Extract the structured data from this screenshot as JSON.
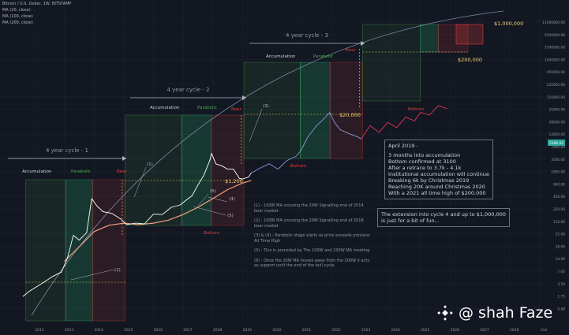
{
  "header": {
    "symbol": "Bitcoin / U.S. Dollar, 1W, BITSTAMP",
    "ma1": "MA (20, close)",
    "ma2": "MA (100, close)",
    "ma3": "MA (200, close)"
  },
  "colors": {
    "background": "#131722",
    "price": "#ffffff",
    "projection": "#e0355a",
    "ma200": "#f0a080",
    "cycle_line": "#7e8ba6",
    "label_yellow": "#f5d36b",
    "accumulation_green": "#4caf50",
    "parabolic_green": "#26d07c",
    "bear_red": "#e03a3a",
    "axis_text": "#9598a1"
  },
  "annotations": {
    "cycle1": "4 year cycle - 1",
    "cycle2": "4 year cycle - 2",
    "cycle3": "4 year cycle - 3",
    "accumulation": "Accumulation",
    "parabolic": "Parabolic",
    "bear": "Bear",
    "bottom": "Bottom",
    "p1200": "$1,200",
    "p20000": "$20,000",
    "p200000": "$200,000",
    "p1000000": "$1,000,000",
    "m1": "(1)",
    "m2": "(2)",
    "m3": "(3)",
    "m4": "(4)",
    "m5": "(5)",
    "m6": "(6)"
  },
  "note_april": {
    "title": "April 2019 -",
    "lines": [
      "3 months into accumulation",
      "Bottom confirmed at 3100",
      "After a retrace to 3.7k - 4.1k",
      "Institutional accumulation will continue",
      "Breaking 6k by Christmas 2019",
      "Reaching 20K around Christmas 2020",
      "With a 2021 all time high of $200,000"
    ]
  },
  "note_extension": {
    "lines": [
      "The extension into cycle 4 and up to $1,000,000",
      "is just for a bit of fun..."
    ]
  },
  "legend_notes": [
    "(1) - 100W MA crossing the 20W Signalling end of 2014 bear market",
    "(2) - 100W MA crossing the 20W Signalling end of 2018 bear market",
    "(3) & (4) - Parabolic stage starts as price exceeds previous All Time High",
    "(5) - This is preceded by The 100W and 200W MA meeting",
    "(6) - Once the 20W MA moves away from the 200W it acts as support until the end of the bull cycle."
  ],
  "watermark": "@ shah Faze",
  "chart_data": {
    "type": "line",
    "y_scale": "log",
    "x_ticks": [
      "2012",
      "2013",
      "2014",
      "2015",
      "2016",
      "2017",
      "2018",
      "2019",
      "2020",
      "2021",
      "2022",
      "2023",
      "2024",
      "2025",
      "2026",
      "2027",
      "2028",
      "Oct"
    ],
    "y_ticks": [
      "11000000.00",
      "5500000.00",
      "2700000.00",
      "1400000.00",
      "450000.00",
      "220000.00",
      "110000.00",
      "55000.00",
      "28000.00",
      "14000.00",
      "7000.00",
      "3500.00",
      "1800.00",
      "900.00",
      "450.00",
      "220.00",
      "110.00",
      "55.00",
      "28.00",
      "14.00",
      "7.00",
      "3.50",
      "1.75",
      "0.88"
    ],
    "current_price_label": "5184.42",
    "series": [
      {
        "name": "",
        "x": [
          2011.6,
          2011.8,
          2012.0,
          2012.3,
          2012.6,
          2012.9,
          2013.1,
          2013.3,
          2013.5,
          2013.75,
          2013.92,
          2014.1,
          2014.3,
          2014.6,
          2014.9,
          2015.1,
          2015.4,
          2015.7,
          2016.0,
          2016.3,
          2016.6,
          2016.9,
          2017.1,
          2017.3,
          2017.5,
          2017.7,
          2017.9,
          2017.96,
          2018.1,
          2018.3,
          2018.5,
          2018.7,
          2018.9,
          2019.0,
          2019.2,
          2019.3
        ],
        "y": [
          3,
          4,
          5,
          7,
          10,
          13,
          30,
          120,
          90,
          140,
          1100,
          700,
          500,
          450,
          320,
          230,
          250,
          240,
          430,
          420,
          650,
          750,
          1000,
          1300,
          2500,
          4500,
          11000,
          17000,
          9000,
          8000,
          6500,
          6500,
          3700,
          3600,
          4000,
          5184
        ]
      },
      {
        "name": "",
        "x": [
          2019.3,
          2019.6,
          2019.9,
          2020.2,
          2020.5,
          2020.8,
          2020.97,
          2021.2,
          2021.5,
          2021.8,
          2021.95,
          2022.1,
          2022.3,
          2022.6,
          2022.9,
          2023.0
        ],
        "y": [
          5184,
          7000,
          9000,
          6500,
          11000,
          14000,
          20000,
          45000,
          90000,
          150000,
          200000,
          110000,
          70000,
          55000,
          45000,
          40000
        ]
      },
      {
        "name": "",
        "x": [
          2023.0,
          2023.3,
          2023.6,
          2023.9,
          2024.2,
          2024.5,
          2024.8,
          2025.0,
          2025.3,
          2025.6,
          2025.9
        ],
        "y": [
          40000,
          90000,
          60000,
          110000,
          80000,
          150000,
          120000,
          200000,
          170000,
          300000,
          250000
        ]
      },
      {
        "name": "",
        "x": [
          2013.0,
          2013.5,
          2014.0,
          2014.5,
          2015.0,
          2015.5,
          2016.0,
          2016.5,
          2017.0,
          2017.5,
          2018.0,
          2018.5,
          2019.0,
          2019.3
        ],
        "y": [
          25,
          60,
          150,
          220,
          250,
          230,
          250,
          300,
          420,
          650,
          1100,
          1900,
          2800,
          3300
        ]
      }
    ]
  }
}
